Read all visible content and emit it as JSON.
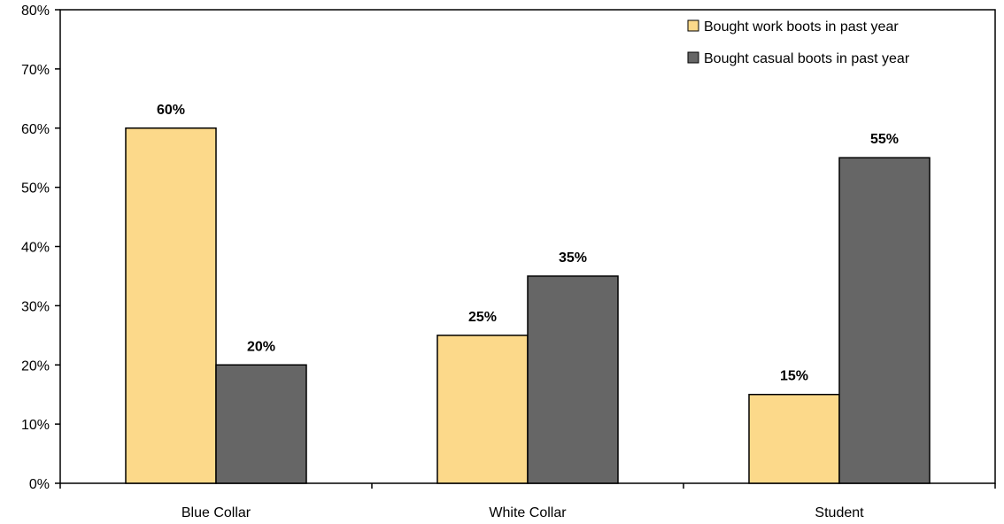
{
  "chart_data": {
    "type": "bar",
    "categories": [
      "Blue Collar",
      "White Collar",
      "Student"
    ],
    "series": [
      {
        "name": "Bought work boots in past year",
        "values": [
          60,
          25,
          15
        ],
        "color": "#FCD98A"
      },
      {
        "name": "Bought casual boots in past year",
        "values": [
          20,
          35,
          55
        ],
        "color": "#666666"
      }
    ],
    "data_labels": [
      [
        "60%",
        "25%",
        "15%"
      ],
      [
        "20%",
        "35%",
        "55%"
      ]
    ],
    "y_ticks": [
      "0%",
      "10%",
      "20%",
      "30%",
      "40%",
      "50%",
      "60%",
      "70%",
      "80%"
    ],
    "ylim": [
      0,
      80
    ],
    "grid": false,
    "legend_position": "top-right",
    "title": "",
    "xlabel": "",
    "ylabel": ""
  }
}
